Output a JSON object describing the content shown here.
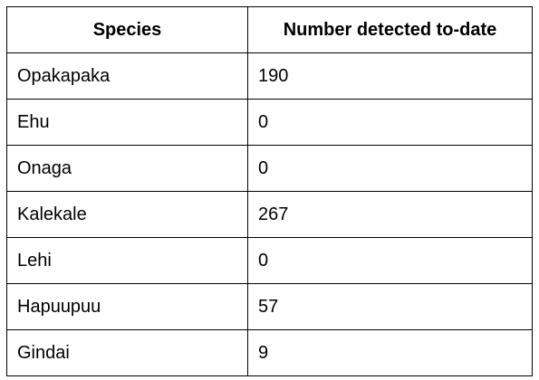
{
  "table": {
    "headers": [
      "Species",
      "Number detected to-date"
    ],
    "rows": [
      [
        "Opakapaka",
        "190"
      ],
      [
        "Ehu",
        "0"
      ],
      [
        "Onaga",
        "0"
      ],
      [
        "Kalekale",
        "267"
      ],
      [
        "Lehi",
        "0"
      ],
      [
        "Hapuupuu",
        "57"
      ],
      [
        "Gindai",
        "9"
      ]
    ]
  }
}
